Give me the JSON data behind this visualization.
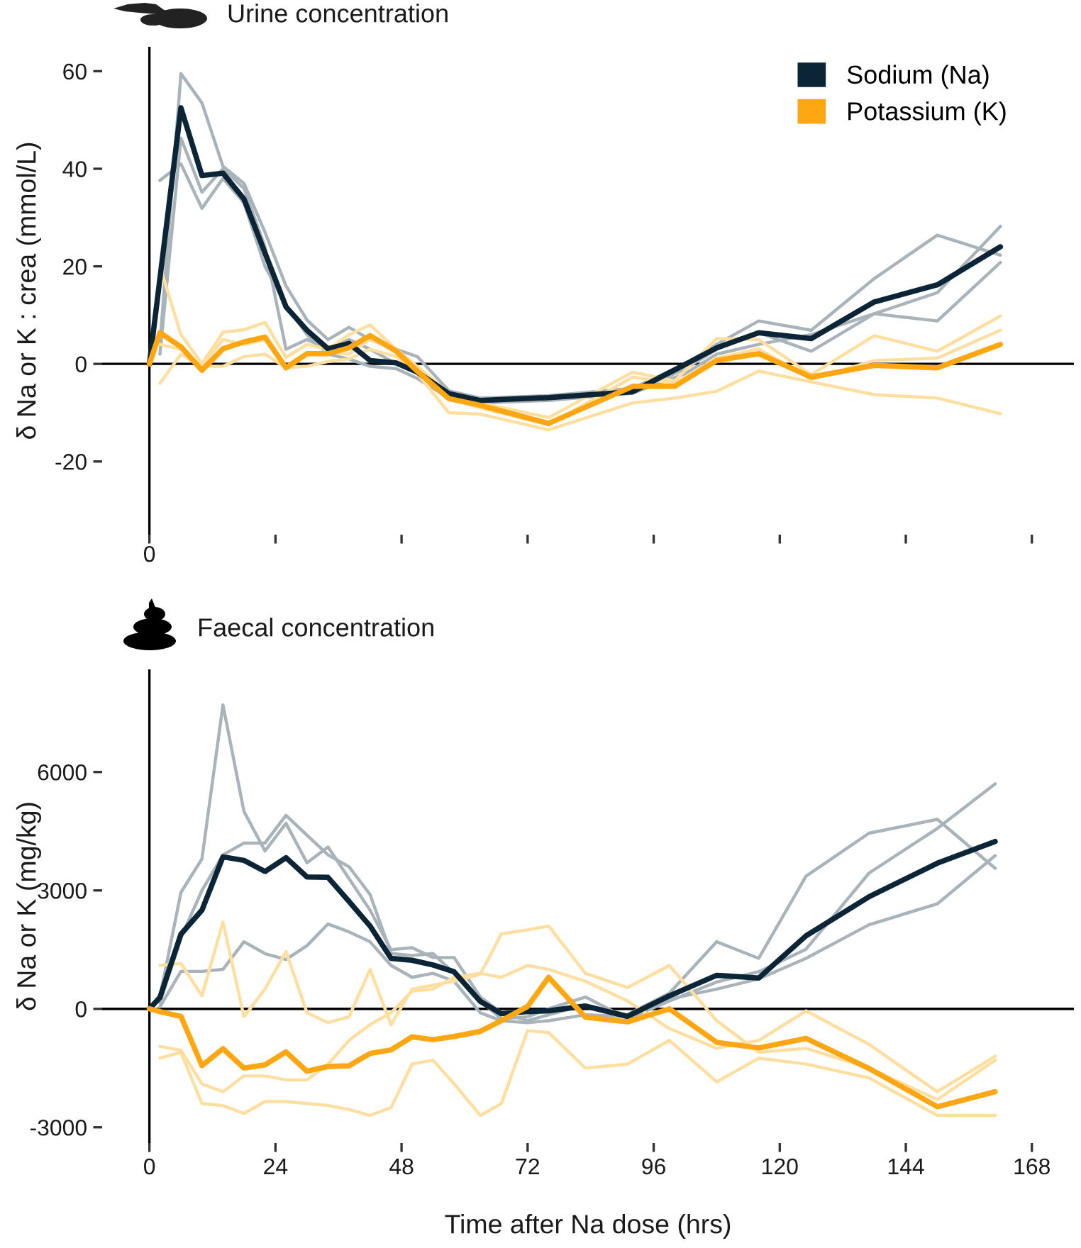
{
  "chart_data": [
    {
      "type": "line",
      "title": "Urine concentration",
      "ylabel": "δ Na or K : crea (mmol/L)",
      "xlim": [
        -9,
        176
      ],
      "ylim": [
        -35,
        65
      ],
      "tick_labels": "y",
      "xticks": [
        0,
        24,
        48,
        72,
        96,
        120,
        144,
        168
      ],
      "yticks": [
        -20,
        0,
        20,
        40,
        60
      ],
      "ref_lines": [
        {
          "axis": "y",
          "value": 0,
          "color": "#000000"
        },
        {
          "axis": "x",
          "value": 0,
          "label": "0",
          "color": "#000000"
        }
      ],
      "legend": "top right",
      "series": [
        {
          "color": "#a9b3ba",
          "x": [
            2,
            6,
            10,
            14,
            18,
            22,
            26,
            30,
            34,
            38,
            42,
            47,
            51,
            57,
            63,
            76,
            92,
            102,
            108,
            116,
            126,
            138,
            150,
            162
          ],
          "values": [
            4,
            59.5,
            53.5,
            40.5,
            37,
            27,
            16,
            9,
            5,
            7.5,
            5,
            3,
            1.5,
            -5.5,
            -7,
            -6.5,
            -5,
            0,
            4,
            8.8,
            6.9,
            17.5,
            26.4,
            22.3
          ]
        },
        {
          "color": "#a9b3ba",
          "x": [
            2,
            6,
            10,
            14,
            18,
            22,
            26,
            30,
            34,
            38,
            42,
            47,
            51,
            57,
            63,
            76,
            92,
            102,
            108,
            116,
            126,
            138,
            150,
            162
          ],
          "values": [
            2,
            46.3,
            35.2,
            40,
            36,
            24,
            3,
            5,
            3,
            5,
            3,
            0,
            -1,
            -6.5,
            -7.5,
            -7,
            -6,
            -1,
            3,
            6.4,
            2.6,
            10.3,
            14.6,
            28.2
          ]
        },
        {
          "color": "#a9b3ba",
          "x": [
            2,
            6,
            10,
            14,
            18,
            22,
            26,
            30,
            34,
            38,
            42,
            47,
            51,
            57,
            63,
            76,
            92,
            102,
            108,
            116,
            126,
            138,
            150,
            162
          ],
          "values": [
            37.6,
            41,
            31.9,
            38,
            33,
            20,
            12,
            6,
            2,
            1,
            -0.5,
            -1,
            -3,
            -7,
            -8,
            -7.5,
            -6,
            -2,
            2,
            4,
            6,
            10.3,
            8.8,
            20.8
          ]
        },
        {
          "color": "#fedfa0",
          "x": [
            2,
            6,
            10,
            14,
            18,
            22,
            26,
            30,
            34,
            38,
            42,
            47,
            51,
            57,
            63,
            76,
            92,
            100,
            108,
            116,
            126,
            138,
            150,
            162
          ],
          "values": [
            20,
            6,
            0,
            6.5,
            7,
            8.5,
            1.3,
            4,
            3,
            6,
            8,
            3,
            -0.5,
            -6,
            -8,
            -11,
            -1.7,
            -3.5,
            5.2,
            5,
            -2.2,
            5.8,
            2.6,
            9.8
          ]
        },
        {
          "color": "#fedfa0",
          "x": [
            2,
            6,
            10,
            14,
            18,
            22,
            26,
            30,
            34,
            38,
            42,
            47,
            51,
            57,
            63,
            76,
            92,
            100,
            108,
            116,
            126,
            138,
            150,
            162
          ],
          "values": [
            4,
            3,
            -0.5,
            5,
            4,
            5,
            -0.5,
            2,
            2.5,
            2,
            5,
            3,
            -1,
            -7,
            -9,
            -12.5,
            -2.7,
            -4,
            1.2,
            3.1,
            -3.2,
            0.7,
            1.2,
            6.9
          ]
        },
        {
          "color": "#fedfa0",
          "x": [
            2,
            6,
            10,
            14,
            18,
            22,
            26,
            30,
            34,
            38,
            42,
            47,
            51,
            57,
            63,
            76,
            92,
            100,
            108,
            116,
            126,
            138,
            150,
            162
          ],
          "values": [
            -4,
            2,
            -0.5,
            -0.5,
            1.5,
            2,
            -0.8,
            -0.5,
            0.5,
            1,
            3,
            1.5,
            -2,
            -10,
            -10.3,
            -13.5,
            -8,
            -7,
            -5.6,
            -1.5,
            -3.7,
            -6.3,
            -7,
            -10.2
          ]
        },
        {
          "name": "Sodium (Na)",
          "color": "#0b2537",
          "x": [
            0,
            6,
            10,
            14,
            18,
            26,
            30,
            34,
            38,
            42,
            47,
            51,
            57,
            63,
            76,
            92,
            102,
            108,
            116,
            126,
            138,
            150,
            162
          ],
          "values": [
            0,
            52.5,
            38.6,
            39.1,
            33.8,
            11.7,
            6.9,
            3.1,
            4.2,
            0.7,
            0.2,
            -1.7,
            -6.1,
            -7.5,
            -6.9,
            -5.7,
            -0.1,
            3.3,
            6.4,
            5.2,
            12.7,
            16.2,
            24.0
          ]
        },
        {
          "name": "Potassium (K)",
          "color": "#fea712",
          "x": [
            0,
            2,
            6,
            10,
            14,
            18,
            22,
            26,
            30,
            34,
            38,
            42,
            47,
            51,
            57,
            63,
            76,
            92,
            100,
            108,
            116,
            126,
            138,
            150,
            162
          ],
          "values": [
            0,
            6.4,
            3.5,
            -1.3,
            3.1,
            4.5,
            5.5,
            -0.8,
            2.1,
            2.1,
            3.3,
            5.8,
            2.6,
            -1.5,
            -7.1,
            -8.5,
            -12.2,
            -4.6,
            -4.6,
            0.7,
            2.1,
            -2.7,
            -0.3,
            -0.8,
            4.0
          ]
        }
      ]
    },
    {
      "type": "line",
      "title": "Faecal concentration",
      "ylabel": "δ Na or K (mg/kg)",
      "xlabel": "Time after Na dose (hrs)",
      "xlim": [
        -9,
        176
      ],
      "ylim": [
        -3400,
        8600
      ],
      "xticks": [
        0,
        24,
        48,
        72,
        96,
        120,
        144,
        168
      ],
      "yticks": [
        -3000,
        0,
        3000,
        6000
      ],
      "ref_lines": [
        {
          "axis": "y",
          "value": 0,
          "color": "#000000"
        },
        {
          "axis": "x",
          "value": 0,
          "color": "#000000"
        }
      ],
      "x": [
        0,
        2,
        6,
        10,
        14,
        18,
        22,
        26,
        30,
        34,
        38,
        42,
        46,
        50,
        54,
        58,
        63,
        67,
        72,
        76,
        83,
        91,
        99,
        108,
        116,
        125,
        137,
        150,
        161
      ],
      "series": [
        {
          "color": "#a9b3ba",
          "x": [
            2,
            6,
            10,
            14,
            18,
            22,
            26,
            30,
            34,
            38,
            42,
            46,
            50,
            54,
            58,
            63,
            67,
            72,
            76,
            83,
            91,
            99,
            108,
            116,
            125,
            137,
            150,
            161
          ],
          "values": [
            300,
            2950,
            3800,
            7700,
            5000,
            4000,
            4700,
            3700,
            4100,
            3300,
            2500,
            1500,
            1550,
            1300,
            1300,
            300,
            -100,
            -300,
            -150,
            100,
            -150,
            400,
            1700,
            1280,
            3360,
            4450,
            4800,
            3560
          ]
        },
        {
          "color": "#a9b3ba",
          "x": [
            2,
            6,
            10,
            14,
            18,
            22,
            26,
            30,
            34,
            38,
            42,
            46,
            50,
            54,
            58,
            63,
            67,
            72,
            76,
            83,
            91,
            99,
            108,
            116,
            125,
            137,
            150,
            161
          ],
          "values": [
            150,
            1800,
            3000,
            3900,
            4200,
            4200,
            4900,
            4400,
            3900,
            3600,
            2900,
            1400,
            1350,
            1400,
            900,
            200,
            -250,
            -200,
            0,
            300,
            -250,
            200,
            680,
            940,
            1510,
            3440,
            4570,
            5700
          ]
        },
        {
          "color": "#a9b3ba",
          "x": [
            2,
            6,
            10,
            14,
            18,
            22,
            26,
            30,
            34,
            38,
            42,
            46,
            50,
            54,
            58,
            63,
            67,
            72,
            76,
            83,
            91,
            99,
            108,
            116,
            125,
            137,
            150,
            161
          ],
          "values": [
            50,
            950,
            950,
            1000,
            1700,
            1400,
            1250,
            1600,
            2150,
            1950,
            1700,
            1100,
            800,
            900,
            700,
            -100,
            -300,
            -350,
            -300,
            -150,
            -200,
            250,
            500,
            760,
            1280,
            2130,
            2660,
            3880
          ]
        },
        {
          "color": "#fedfa0",
          "x": [
            2,
            6,
            10,
            14,
            18,
            22,
            26,
            30,
            34,
            38,
            42,
            46,
            50,
            54,
            58,
            63,
            67,
            72,
            76,
            83,
            91,
            99,
            108,
            116,
            125,
            137,
            150,
            161
          ],
          "values": [
            1100,
            1150,
            330,
            2200,
            -200,
            500,
            1450,
            -100,
            -350,
            -200,
            1000,
            -400,
            500,
            600,
            700,
            880,
            1900,
            2000,
            2100,
            900,
            540,
            1100,
            -300,
            -1100,
            -1000,
            -1500,
            -2300,
            -1300
          ]
        },
        {
          "color": "#fedfa0",
          "x": [
            2,
            6,
            10,
            14,
            18,
            22,
            26,
            30,
            34,
            38,
            42,
            46,
            50,
            54,
            58,
            63,
            67,
            72,
            76,
            83,
            91,
            99,
            108,
            116,
            125,
            137,
            150,
            161
          ],
          "values": [
            -950,
            -1050,
            -1900,
            -2100,
            -1700,
            -1700,
            -1800,
            -1800,
            -1400,
            -800,
            -400,
            -100,
            450,
            500,
            800,
            900,
            800,
            1100,
            1000,
            700,
            200,
            -500,
            -1000,
            -800,
            -50,
            -900,
            -2100,
            -1200
          ]
        },
        {
          "color": "#fedfa0",
          "x": [
            2,
            6,
            10,
            14,
            18,
            22,
            26,
            30,
            34,
            38,
            42,
            46,
            50,
            54,
            58,
            63,
            67,
            72,
            76,
            83,
            91,
            99,
            108,
            116,
            125,
            137,
            150,
            161
          ],
          "values": [
            -1250,
            -1100,
            -2400,
            -2450,
            -2650,
            -2350,
            -2350,
            -2400,
            -2450,
            -2550,
            -2700,
            -2500,
            -1400,
            -1300,
            -1900,
            -2700,
            -2400,
            -550,
            -600,
            -1500,
            -1400,
            -800,
            -1850,
            -1250,
            -1400,
            -1750,
            -2700,
            -2700
          ]
        },
        {
          "color": "#0b2537",
          "values": [
            0,
            290,
            1890,
            2500,
            3850,
            3760,
            3480,
            3830,
            3340,
            3330,
            2720,
            2100,
            1280,
            1230,
            1110,
            940,
            190,
            -120,
            -70,
            -50,
            70,
            -190,
            330,
            850,
            780,
            1850,
            2840,
            3690,
            4240
          ]
        },
        {
          "color": "#fea712",
          "values": [
            0,
            -70,
            -190,
            -1440,
            -1010,
            -1500,
            -1420,
            -1090,
            -1580,
            -1460,
            -1440,
            -1130,
            -1040,
            -710,
            -780,
            -700,
            -570,
            -300,
            60,
            800,
            -210,
            -330,
            0,
            -850,
            -990,
            -750,
            -1510,
            -2480,
            -2100
          ]
        }
      ]
    }
  ]
}
